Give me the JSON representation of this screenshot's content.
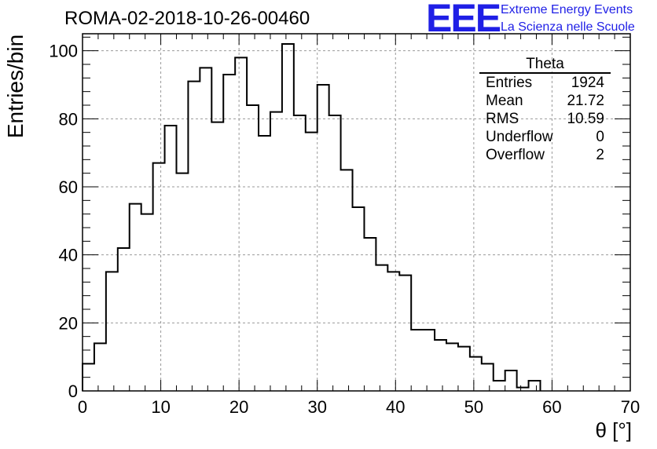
{
  "header": {
    "title": "ROMA-02-2018-10-26-00460",
    "logo_text": "EEE",
    "logo_line1": "Extreme Energy Events",
    "logo_line2": "La Scienza nelle Scuole"
  },
  "stats_box": {
    "title": "Theta",
    "rows": [
      {
        "label": "Entries",
        "value": "1924"
      },
      {
        "label": "Mean",
        "value": "21.72"
      },
      {
        "label": "RMS",
        "value": "10.59"
      },
      {
        "label": "Underflow",
        "value": "0"
      },
      {
        "label": "Overflow",
        "value": "2"
      }
    ]
  },
  "chart_data": {
    "type": "bar",
    "title": "ROMA-02-2018-10-26-00460",
    "xlabel": "θ [°]",
    "ylabel": "Entries/bin",
    "xlim": [
      0,
      70
    ],
    "ylim": [
      0,
      105
    ],
    "bin_width": 1.5,
    "bin_start": 0,
    "x_ticks": [
      0,
      10,
      20,
      30,
      40,
      50,
      60,
      70
    ],
    "y_ticks": [
      0,
      20,
      40,
      60,
      80,
      100
    ],
    "grid": true,
    "values": [
      8,
      14,
      35,
      42,
      55,
      52,
      67,
      78,
      64,
      91,
      95,
      79,
      93,
      98,
      84,
      75,
      82,
      102,
      81,
      76,
      90,
      81,
      65,
      54,
      45,
      37,
      35,
      34,
      18,
      18,
      15,
      14,
      13,
      10,
      8,
      3,
      6,
      1,
      3
    ]
  }
}
